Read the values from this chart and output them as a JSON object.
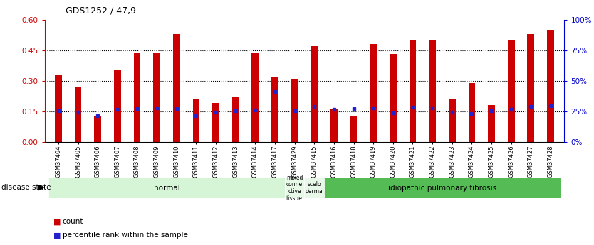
{
  "title": "GDS1252 / 47,9",
  "samples": [
    "GSM37404",
    "GSM37405",
    "GSM37406",
    "GSM37407",
    "GSM37408",
    "GSM37409",
    "GSM37410",
    "GSM37411",
    "GSM37412",
    "GSM37413",
    "GSM37414",
    "GSM37417",
    "GSM37429",
    "GSM37415",
    "GSM37416",
    "GSM37418",
    "GSM37419",
    "GSM37420",
    "GSM37421",
    "GSM37422",
    "GSM37423",
    "GSM37424",
    "GSM37425",
    "GSM37426",
    "GSM37427",
    "GSM37428"
  ],
  "count_values": [
    0.33,
    0.27,
    0.13,
    0.35,
    0.44,
    0.44,
    0.53,
    0.21,
    0.19,
    0.22,
    0.44,
    0.32,
    0.31,
    0.47,
    0.16,
    0.13,
    0.48,
    0.43,
    0.5,
    0.5,
    0.21,
    0.29,
    0.18,
    0.5,
    0.53,
    0.55
  ],
  "percentile_values": [
    0.155,
    0.148,
    0.128,
    0.162,
    0.165,
    0.168,
    0.165,
    0.13,
    0.148,
    0.155,
    0.158,
    0.248,
    0.155,
    0.175,
    0.162,
    0.165,
    0.168,
    0.142,
    0.172,
    0.168,
    0.148,
    0.138,
    0.152,
    0.162,
    0.175,
    0.178
  ],
  "bar_color": "#cc0000",
  "percentile_color": "#2222cc",
  "ylim_left": [
    0,
    0.6
  ],
  "ylim_right": [
    0,
    100
  ],
  "yticks_left": [
    0,
    0.15,
    0.3,
    0.45,
    0.6
  ],
  "yticks_right": [
    0,
    25,
    50,
    75,
    100
  ],
  "disease_groups": [
    {
      "label": "normal",
      "start": 0,
      "end": 12,
      "color": "#d6f5d6"
    },
    {
      "label": "mixed\nconne\nctive\ntissue",
      "start": 12,
      "end": 13,
      "color": "#e8f8e8"
    },
    {
      "label": "scelo\nderma",
      "start": 13,
      "end": 14,
      "color": "#e8f8e8"
    },
    {
      "label": "idiopathic pulmonary fibrosis",
      "start": 14,
      "end": 26,
      "color": "#55bb55"
    }
  ],
  "left_axis_color": "#cc0000",
  "right_axis_color": "#0000cc",
  "bar_width": 0.35,
  "figsize": [
    8.34,
    3.45
  ],
  "dpi": 100
}
